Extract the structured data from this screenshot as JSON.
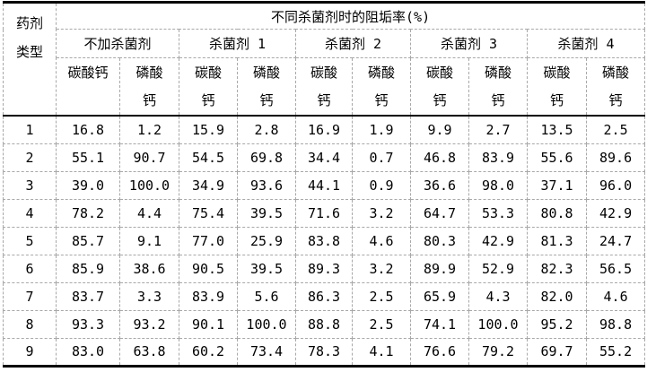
{
  "colors": {
    "background": "#ffffff",
    "text": "#000000",
    "border_solid": "#000000",
    "border_dashed": "#a8a8a8"
  },
  "table": {
    "corner_header": "药剂\n类型",
    "top_header": "不同杀菌剂时的阻垢率(%)",
    "group_headers": [
      "不加杀菌剂",
      "杀菌剂 1",
      "杀菌剂 2",
      "杀菌剂 3",
      "杀菌剂 4"
    ],
    "sub_headers": [
      "碳酸钙",
      "磷酸\n钙",
      "碳酸\n钙",
      "磷酸\n钙",
      "碳酸\n钙",
      "磷酸\n钙",
      "碳酸\n钙",
      "磷酸\n钙",
      "碳酸\n钙",
      "磷酸\n钙"
    ],
    "rows": [
      {
        "label": "1",
        "values": [
          "16.8",
          "1.2",
          "15.9",
          "2.8",
          "16.9",
          "1.9",
          "9.9",
          "2.7",
          "13.5",
          "2.5"
        ]
      },
      {
        "label": "2",
        "values": [
          "55.1",
          "90.7",
          "54.5",
          "69.8",
          "34.4",
          "0.7",
          "46.8",
          "83.9",
          "55.6",
          "89.6"
        ]
      },
      {
        "label": "3",
        "values": [
          "39.0",
          "100.0",
          "34.9",
          "93.6",
          "44.1",
          "0.9",
          "36.6",
          "98.0",
          "37.1",
          "96.0"
        ]
      },
      {
        "label": "4",
        "values": [
          "78.2",
          "4.4",
          "75.4",
          "39.5",
          "71.6",
          "3.2",
          "64.7",
          "53.3",
          "80.8",
          "42.9"
        ]
      },
      {
        "label": "5",
        "values": [
          "85.7",
          "9.1",
          "77.0",
          "25.9",
          "83.8",
          "4.6",
          "80.3",
          "42.9",
          "81.3",
          "24.7"
        ]
      },
      {
        "label": "6",
        "values": [
          "85.9",
          "38.6",
          "90.5",
          "39.5",
          "89.3",
          "3.2",
          "89.9",
          "52.9",
          "82.3",
          "56.5"
        ]
      },
      {
        "label": "7",
        "values": [
          "83.7",
          "3.3",
          "83.9",
          "5.6",
          "86.3",
          "2.5",
          "65.9",
          "4.3",
          "82.0",
          "4.6"
        ]
      },
      {
        "label": "8",
        "values": [
          "93.3",
          "93.2",
          "90.1",
          "100.0",
          "88.8",
          "2.5",
          "74.1",
          "100.0",
          "95.2",
          "98.8"
        ]
      },
      {
        "label": "9",
        "values": [
          "83.0",
          "63.8",
          "60.2",
          "73.4",
          "78.3",
          "4.1",
          "76.6",
          "79.2",
          "69.7",
          "55.2"
        ]
      }
    ]
  }
}
